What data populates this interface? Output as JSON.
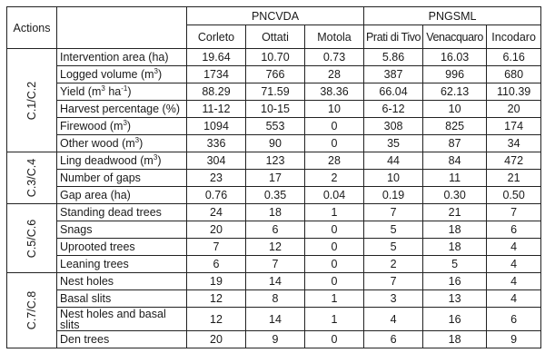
{
  "table": {
    "header": {
      "actions_label": "Actions",
      "groups": [
        {
          "label": "PNCVDA",
          "sites": [
            "Corleto",
            "Ottati",
            "Motola"
          ]
        },
        {
          "label": "PNGSML",
          "sites": [
            "Prati di Tivo",
            "Venacquaro",
            "Incodaro"
          ]
        }
      ]
    },
    "sections": [
      {
        "action": "C.1/C.2",
        "rows": [
          {
            "label": "Intervention area (ha)",
            "values": [
              "19.64",
              "10.70",
              "0.73",
              "5.86",
              "16.03",
              "6.16"
            ]
          },
          {
            "label": "Logged volume (m",
            "sup": "3",
            "suffix": ")",
            "values": [
              "1734",
              "766",
              "28",
              "387",
              "996",
              "680"
            ]
          },
          {
            "label": "Yield (m",
            "sup": "3",
            "mid": " ha",
            "sup2": "-1",
            "suffix": ")",
            "values": [
              "88.29",
              "71.59",
              "38.36",
              "66.04",
              "62.13",
              "110.39"
            ]
          },
          {
            "label": "Harvest percentage (%)",
            "values": [
              "11-12",
              "10-15",
              "10",
              "6-12",
              "10",
              "20"
            ]
          },
          {
            "label": "Firewood (m",
            "sup": "3",
            "suffix": ")",
            "values": [
              "1094",
              "553",
              "0",
              "308",
              "825",
              "174"
            ]
          },
          {
            "label": "Other wood (m",
            "sup": "3",
            "suffix": ")",
            "values": [
              "336",
              "90",
              "0",
              "35",
              "87",
              "34"
            ]
          }
        ]
      },
      {
        "action": "C.3/C.4",
        "rows": [
          {
            "label": "Ling deadwood (m",
            "sup": "3",
            "suffix": ")",
            "values": [
              "304",
              "123",
              "28",
              "44",
              "84",
              "472"
            ]
          },
          {
            "label": "Number of gaps",
            "values": [
              "23",
              "17",
              "2",
              "10",
              "11",
              "21"
            ]
          },
          {
            "label": "Gap area (ha)",
            "values": [
              "0.76",
              "0.35",
              "0.04",
              "0.19",
              "0.30",
              "0.50"
            ]
          }
        ]
      },
      {
        "action": "C.5/C.6",
        "rows": [
          {
            "label": "Standing dead trees",
            "values": [
              "24",
              "18",
              "1",
              "7",
              "21",
              "7"
            ]
          },
          {
            "label": "Snags",
            "values": [
              "20",
              "6",
              "0",
              "5",
              "18",
              "6"
            ]
          },
          {
            "label": "Uprooted trees",
            "values": [
              "7",
              "12",
              "0",
              "5",
              "18",
              "4"
            ]
          },
          {
            "label": "Leaning trees",
            "values": [
              "6",
              "7",
              "0",
              "2",
              "5",
              "4"
            ]
          }
        ]
      },
      {
        "action": "C.7/C.8",
        "rows": [
          {
            "label": "Nest holes",
            "values": [
              "19",
              "14",
              "0",
              "7",
              "16",
              "4"
            ]
          },
          {
            "label": "Basal slits",
            "values": [
              "12",
              "8",
              "1",
              "3",
              "13",
              "4"
            ]
          },
          {
            "label": "Nest holes and basal slits",
            "values": [
              "12",
              "14",
              "1",
              "4",
              "16",
              "6"
            ]
          },
          {
            "label": "Den trees",
            "values": [
              "20",
              "9",
              "0",
              "6",
              "18",
              "9"
            ]
          }
        ]
      }
    ]
  }
}
